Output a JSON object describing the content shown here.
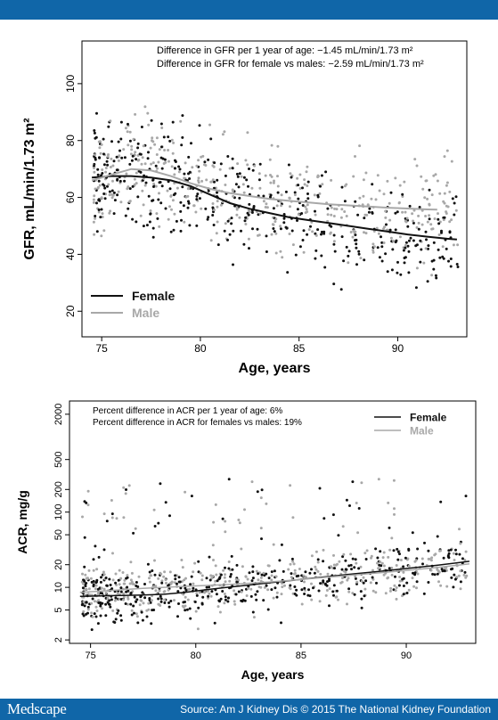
{
  "footer": {
    "brand": "Medscape",
    "source": "Source: Am J Kidney Dis © 2015 The National Kidney Foundation"
  },
  "colors": {
    "female": "#111111",
    "male": "#a8a8a8",
    "bar": "#1066a8"
  },
  "chart_data": [
    {
      "type": "scatter",
      "xlabel": "Age, years",
      "ylabel": "GFR, mL/min/1.73 m²",
      "xlim": [
        74,
        93.5
      ],
      "ylim": [
        11,
        115
      ],
      "xticks": [
        75,
        80,
        85,
        90
      ],
      "yticks": [
        20,
        40,
        60,
        80,
        100
      ],
      "annotations": [
        "Difference in GFR per 1 year of age: −1.45 mL/min/1.73 m²",
        "Difference in GFR for female vs males: −2.59 mL/min/1.73 m²"
      ],
      "legend_position": "bottom-left",
      "series": [
        {
          "name": "Female",
          "color": "#111111",
          "trend": [
            [
              74.5,
              67
            ],
            [
              75.5,
              67.5
            ],
            [
              76.5,
              67.5
            ],
            [
              77.5,
              67
            ],
            [
              78.5,
              66
            ],
            [
              79.5,
              64
            ],
            [
              80.5,
              61
            ],
            [
              81.5,
              58
            ],
            [
              82.5,
              56
            ],
            [
              83.5,
              54.5
            ],
            [
              84.5,
              53
            ],
            [
              85.5,
              52
            ],
            [
              86.5,
              51
            ],
            [
              87.5,
              50
            ],
            [
              88.5,
              49
            ],
            [
              89.5,
              48
            ],
            [
              90.5,
              47
            ],
            [
              91.5,
              46.2
            ],
            [
              92.5,
              45.5
            ],
            [
              93,
              45.2
            ]
          ]
        },
        {
          "name": "Male",
          "color": "#a8a8a8",
          "trend": [
            [
              74.5,
              66
            ],
            [
              75.5,
              68
            ],
            [
              76.5,
              70
            ],
            [
              77.5,
              69.5
            ],
            [
              78.5,
              67.5
            ],
            [
              79.5,
              65
            ],
            [
              80.5,
              63
            ],
            [
              81.5,
              61.5
            ],
            [
              82.5,
              60.5
            ],
            [
              83.5,
              59.5
            ],
            [
              84.5,
              58.8
            ],
            [
              85.5,
              58.2
            ],
            [
              86.5,
              57.6
            ],
            [
              87.5,
              57.2
            ],
            [
              88.5,
              56.8
            ],
            [
              89.5,
              56.4
            ],
            [
              90.5,
              56.1
            ],
            [
              91.5,
              55.8
            ],
            [
              92,
              55.7
            ]
          ]
        }
      ]
    },
    {
      "type": "scatter",
      "xlabel": "Age, years",
      "ylabel": "ACR, mg/g",
      "xscale": "linear",
      "yscale": "log",
      "xlim": [
        74,
        93.3
      ],
      "ylim": [
        1.8,
        3000
      ],
      "xticks": [
        75,
        80,
        85,
        90
      ],
      "yticks": [
        2,
        5,
        10,
        20,
        50,
        100,
        200,
        500,
        2000
      ],
      "annotations": [
        "Percent difference in ACR per 1 year of age: 6%",
        "Percent difference in ACR for females vs males: 19%"
      ],
      "legend_position": "top-right",
      "series": [
        {
          "name": "Female",
          "color": "#111111",
          "trend": [
            [
              74.5,
              7.6
            ],
            [
              75.5,
              7.7
            ],
            [
              76.5,
              7.8
            ],
            [
              77.5,
              7.9
            ],
            [
              78.5,
              8.1
            ],
            [
              79.5,
              8.6
            ],
            [
              80.5,
              9.3
            ],
            [
              81.5,
              10
            ],
            [
              82.5,
              10.7
            ],
            [
              83.5,
              11.5
            ],
            [
              84.5,
              12.3
            ],
            [
              85.5,
              13.2
            ],
            [
              86.5,
              14.1
            ],
            [
              87.5,
              15.1
            ],
            [
              88.5,
              16.1
            ],
            [
              89.5,
              17.2
            ],
            [
              90.5,
              18.4
            ],
            [
              91.5,
              19.7
            ],
            [
              92.5,
              21.3
            ],
            [
              93,
              22.2
            ]
          ]
        },
        {
          "name": "Male",
          "color": "#a8a8a8",
          "trend": [
            [
              74.5,
              8.6
            ],
            [
              75.5,
              8.9
            ],
            [
              76.5,
              9.3
            ],
            [
              77.5,
              9.7
            ],
            [
              78.5,
              10
            ],
            [
              79.5,
              10.3
            ],
            [
              80.5,
              10.6
            ],
            [
              81.5,
              10.9
            ],
            [
              82.5,
              11.3
            ],
            [
              83.5,
              11.8
            ],
            [
              84.5,
              12.4
            ],
            [
              85.5,
              13.1
            ],
            [
              86.5,
              13.8
            ],
            [
              87.5,
              14.6
            ],
            [
              88.5,
              15.4
            ],
            [
              89.5,
              16.3
            ],
            [
              90.5,
              17.3
            ],
            [
              91.5,
              18.4
            ],
            [
              92.5,
              19.8
            ],
            [
              93,
              20.5
            ]
          ]
        }
      ]
    }
  ]
}
